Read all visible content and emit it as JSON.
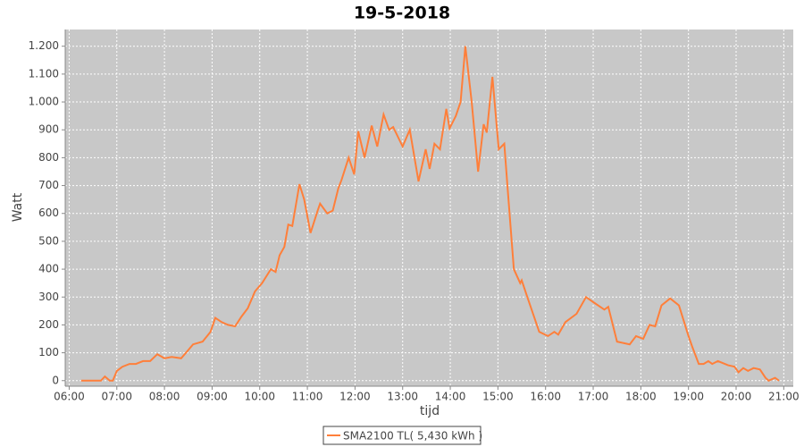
{
  "chart_data": {
    "type": "line",
    "title": "19-5-2018",
    "x_label": "tijd",
    "y_label": "Watt",
    "x": [
      "06:15",
      "06:40",
      "06:45",
      "06:51",
      "06:55",
      "07:00",
      "07:07",
      "07:16",
      "07:24",
      "07:33",
      "07:42",
      "07:51",
      "08:00",
      "08:09",
      "08:21",
      "08:30",
      "08:36",
      "08:48",
      "08:58",
      "09:04",
      "09:12",
      "09:20",
      "09:29",
      "09:37",
      "09:45",
      "09:54",
      "10:03",
      "10:14",
      "10:20",
      "10:25",
      "10:31",
      "10:36",
      "10:41",
      "10:50",
      "10:56",
      "11:04",
      "11:13",
      "11:16",
      "11:25",
      "11:32",
      "11:39",
      "11:43",
      "11:52",
      "11:59",
      "12:04",
      "12:12",
      "12:21",
      "12:28",
      "12:36",
      "12:43",
      "12:48",
      "13:00",
      "13:09",
      "13:20",
      "13:29",
      "13:34",
      "13:40",
      "13:47",
      "13:55",
      "13:59",
      "14:07",
      "14:13",
      "14:19",
      "14:27",
      "14:35",
      "14:42",
      "14:46",
      "14:53",
      "15:01",
      "15:08",
      "15:12",
      "15:20",
      "15:28",
      "15:30",
      "15:37",
      "15:52",
      "16:03",
      "16:11",
      "16:16",
      "16:25",
      "16:39",
      "16:51",
      "17:01",
      "17:14",
      "17:19",
      "17:30",
      "17:46",
      "17:54",
      "18:03",
      "18:11",
      "18:18",
      "18:26",
      "18:37",
      "18:48",
      "19:00",
      "19:05",
      "19:13",
      "19:19",
      "19:25",
      "19:30",
      "19:37",
      "19:50",
      "19:58",
      "20:03",
      "20:09",
      "20:15",
      "20:22",
      "20:30",
      "20:37",
      "20:41",
      "20:49",
      "20:54"
    ],
    "series": [
      {
        "name": "SMA2100 TL( 5,430 kWh )",
        "color": "#ff7f3a",
        "values": [
          0,
          0,
          15,
          0,
          0,
          35,
          50,
          60,
          60,
          70,
          70,
          95,
          80,
          85,
          80,
          110,
          130,
          140,
          175,
          225,
          210,
          200,
          195,
          230,
          260,
          320,
          350,
          400,
          390,
          450,
          480,
          560,
          555,
          705,
          650,
          530,
          610,
          635,
          600,
          610,
          690,
          720,
          800,
          740,
          895,
          800,
          915,
          840,
          955,
          900,
          910,
          840,
          900,
          715,
          830,
          760,
          850,
          830,
          975,
          905,
          950,
          1000,
          1200,
          1000,
          750,
          920,
          890,
          1090,
          830,
          850,
          700,
          400,
          350,
          360,
          300,
          175,
          160,
          175,
          165,
          210,
          240,
          300,
          280,
          255,
          265,
          140,
          130,
          160,
          150,
          200,
          195,
          270,
          295,
          270,
          160,
          120,
          60,
          60,
          70,
          60,
          70,
          55,
          50,
          30,
          45,
          35,
          45,
          40,
          10,
          0,
          10,
          0
        ]
      }
    ],
    "xlim": [
      "05:55",
      "21:12"
    ],
    "xticks": [
      "06:00",
      "07:00",
      "08:00",
      "09:00",
      "10:00",
      "11:00",
      "12:00",
      "13:00",
      "14:00",
      "15:00",
      "16:00",
      "17:00",
      "18:00",
      "19:00",
      "20:00",
      "21:00"
    ],
    "ylim": [
      -20,
      1260
    ],
    "yticks": [
      0,
      100,
      200,
      300,
      400,
      500,
      600,
      700,
      800,
      900,
      {
        "value": 1000,
        "label": "1.000"
      },
      {
        "value": 1100,
        "label": "1.100"
      },
      {
        "value": 1200,
        "label": "1.200"
      }
    ],
    "grid": true,
    "legend": "bottom"
  }
}
